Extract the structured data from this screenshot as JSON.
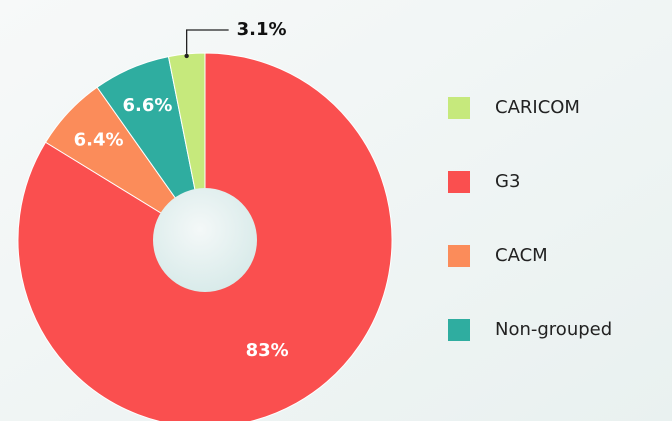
{
  "chart_data": {
    "type": "pie",
    "categories": [
      "CARICOM",
      "G3",
      "CACM",
      "Non-grouped"
    ],
    "values": [
      3.1,
      83,
      6.4,
      6.6
    ],
    "value_labels": [
      "3.1%",
      "83%",
      "6.4%",
      "6.6%"
    ],
    "colors": [
      "#c6e97c",
      "#fa4f4f",
      "#fb8c5a",
      "#2fada0"
    ],
    "donut": true
  }
}
